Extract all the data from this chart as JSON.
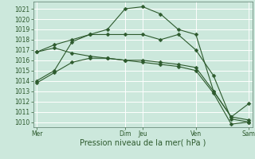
{
  "background_color": "#cce8dc",
  "grid_color": "#ffffff",
  "line_color": "#2d5a2d",
  "vline_color": "#5a7a6a",
  "title": "Pression niveau de la mer( hPa )",
  "ylim": [
    1009.5,
    1021.7
  ],
  "yticks": [
    1010,
    1011,
    1012,
    1013,
    1014,
    1015,
    1016,
    1017,
    1018,
    1019,
    1020,
    1021
  ],
  "xlim": [
    -0.2,
    12.2
  ],
  "xtick_positions": [
    0,
    5,
    6,
    9,
    12
  ],
  "xtick_labels": [
    "Mer",
    "Dim",
    "Jeu",
    "Ven",
    "Sam"
  ],
  "vline_positions": [
    0,
    5,
    6,
    9,
    12
  ],
  "series": [
    {
      "x": [
        0,
        1,
        2,
        3,
        4,
        5,
        6,
        7,
        8,
        9,
        10,
        11,
        12
      ],
      "y": [
        1014.0,
        1015.0,
        1017.8,
        1018.5,
        1019.0,
        1021.0,
        1021.2,
        1020.5,
        1019.0,
        1018.5,
        1013.0,
        1010.5,
        1011.8
      ]
    },
    {
      "x": [
        0,
        1,
        2,
        3,
        4,
        5,
        6,
        7,
        8,
        9,
        10,
        11,
        12
      ],
      "y": [
        1016.8,
        1017.5,
        1018.0,
        1018.5,
        1018.5,
        1018.5,
        1018.5,
        1018.0,
        1018.5,
        1017.0,
        1014.5,
        1010.3,
        1010.0
      ]
    },
    {
      "x": [
        0,
        1,
        2,
        3,
        4,
        5,
        6,
        7,
        8,
        9,
        10,
        11,
        12
      ],
      "y": [
        1016.8,
        1017.2,
        1016.7,
        1016.4,
        1016.2,
        1016.0,
        1016.0,
        1015.8,
        1015.6,
        1015.3,
        1013.0,
        1010.5,
        1010.2
      ]
    },
    {
      "x": [
        0,
        1,
        2,
        3,
        4,
        5,
        6,
        7,
        8,
        9,
        10,
        11,
        12
      ],
      "y": [
        1013.8,
        1014.8,
        1015.8,
        1016.2,
        1016.2,
        1016.0,
        1015.8,
        1015.6,
        1015.4,
        1015.0,
        1012.8,
        1009.8,
        1010.0
      ]
    }
  ],
  "title_fontsize": 7,
  "tick_fontsize": 5.5
}
